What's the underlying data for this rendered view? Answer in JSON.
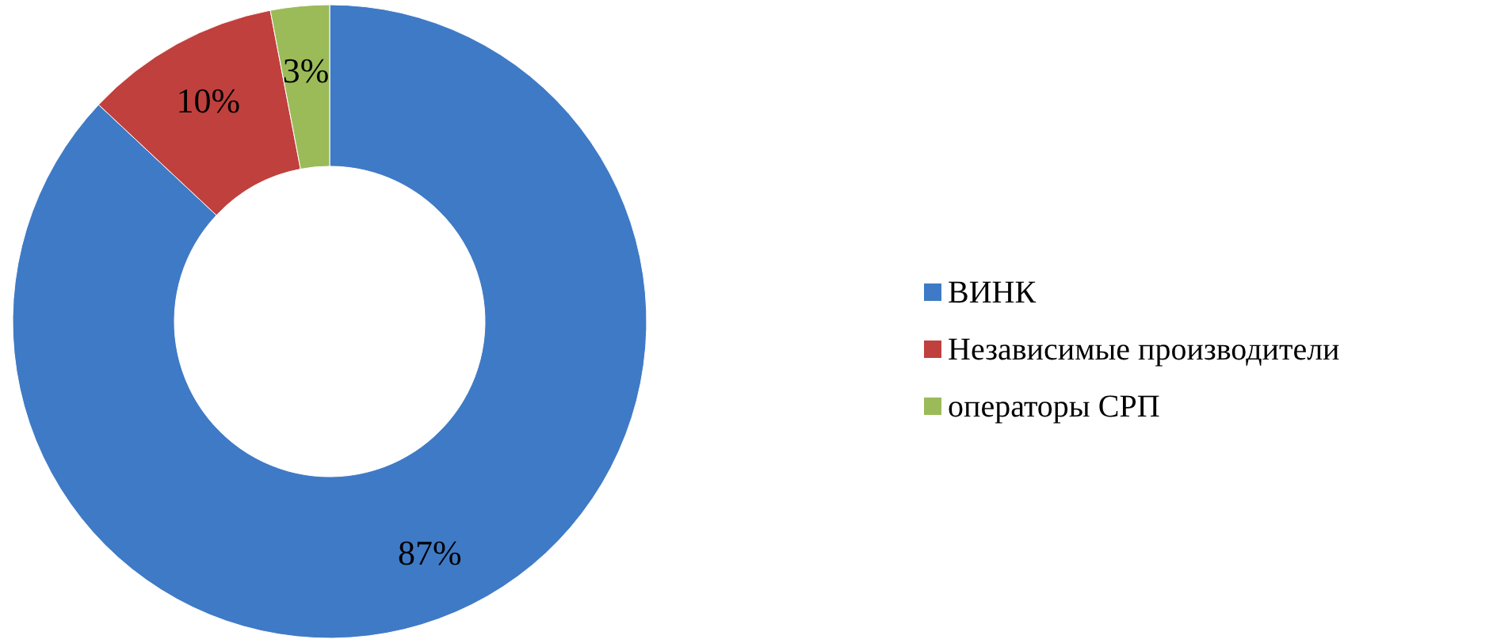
{
  "chart_data": {
    "type": "donut",
    "categories": [
      "ВИНК",
      "Независимые производители",
      "операторы СРП"
    ],
    "values": [
      87,
      10,
      3
    ],
    "colors": [
      "#3f7ac6",
      "#c0403d",
      "#9bbb59"
    ],
    "value_labels": [
      "87%",
      "10%",
      "3%"
    ],
    "legend": "right"
  }
}
